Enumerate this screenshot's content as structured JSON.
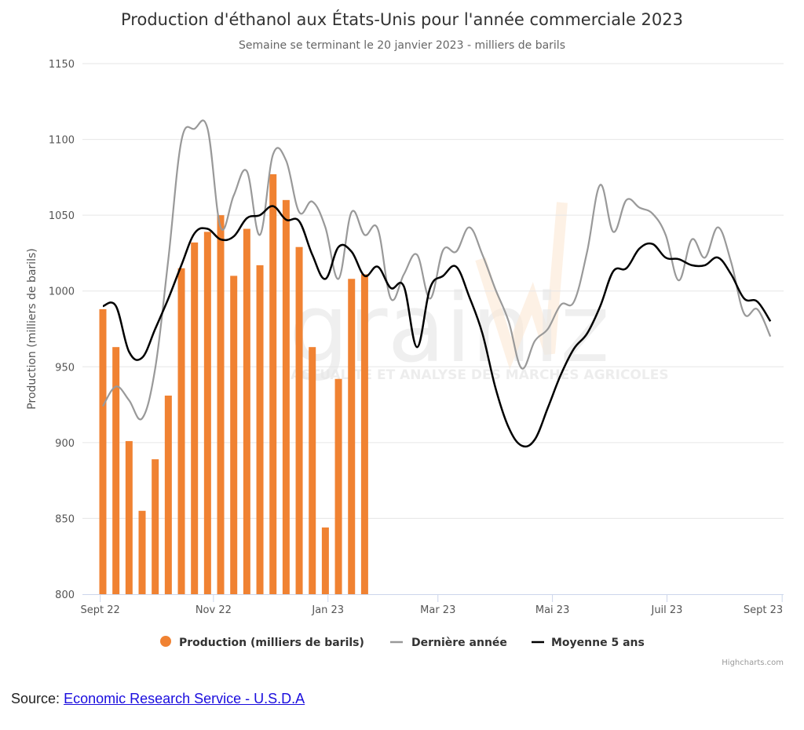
{
  "chart_data": {
    "type": "bar+line",
    "title": "Production d'éthanol aux États-Unis pour l'année commerciale 2023",
    "subtitle": "Semaine se terminant le 20 janvier 2023 - milliers de barils",
    "ylabel": "Production (milliers de barils)",
    "xlabel": "",
    "ylim": [
      800,
      1150
    ],
    "yticks": [
      "800",
      "850",
      "900",
      "950",
      "1000",
      "1050",
      "1100",
      "1150"
    ],
    "ytick_values": [
      800,
      850,
      900,
      950,
      1000,
      1050,
      1100,
      1150
    ],
    "xticks": [
      "Sept 22",
      "Nov 22",
      "Jan 23",
      "Mar 23",
      "Mai 23",
      "Juil 23",
      "Sept 23"
    ],
    "xtick_weeks": [
      -0.2,
      8.45,
      17.2,
      25.6,
      34.35,
      43.1,
      51.9
    ],
    "x_unit": "week index (0 = first week of Sept 2022)",
    "xlim": [
      -1.6,
      51.95
    ],
    "grid": true,
    "legend_position": "bottom-center",
    "series": [
      {
        "name": "Production (milliers de barils)",
        "type": "bar",
        "color": "#f08232",
        "values": [
          988,
          963,
          901,
          855,
          889,
          931,
          1015,
          1032,
          1039,
          1050,
          1010,
          1041,
          1017,
          1077,
          1060,
          1029,
          963,
          844,
          942,
          1008,
          1011
        ]
      },
      {
        "name": "Dernière année",
        "type": "line",
        "color": "#999999",
        "values": [
          924,
          937,
          928,
          916,
          949,
          1021,
          1099,
          1107,
          1107,
          1042,
          1063,
          1079,
          1037,
          1090,
          1086,
          1052,
          1059,
          1042,
          1008,
          1052,
          1037,
          1041,
          995,
          1011,
          1024,
          995,
          1027,
          1026,
          1042,
          1024,
          1001,
          980,
          949,
          967,
          975,
          991,
          993,
          1026,
          1070,
          1039,
          1060,
          1055,
          1051,
          1037,
          1007,
          1034,
          1022,
          1042,
          1019,
          985,
          988,
          970
        ]
      },
      {
        "name": "Moyenne 5 ans",
        "type": "line",
        "color": "#000000",
        "values": [
          990,
          990,
          960,
          956,
          975,
          995,
          1017,
          1038,
          1041,
          1034,
          1036,
          1048,
          1050,
          1056,
          1047,
          1046,
          1024,
          1008,
          1029,
          1026,
          1010,
          1016,
          1002,
          1003,
          963,
          1002,
          1010,
          1016,
          996,
          972,
          936,
          910,
          898,
          902,
          923,
          945,
          962,
          972,
          990,
          1013,
          1015,
          1028,
          1031,
          1022,
          1021,
          1017,
          1017,
          1022,
          1011,
          995,
          993,
          980
        ]
      }
    ]
  },
  "watermark": {
    "brand": "grainWiz",
    "tagline": "ACTUALITÉ ET ANALYSE DES MARCHÉS AGRICOLES"
  },
  "credits": "Highcharts.com",
  "source": {
    "label": "Source:",
    "link_text": "Economic Research Service - U.S.D.A"
  }
}
